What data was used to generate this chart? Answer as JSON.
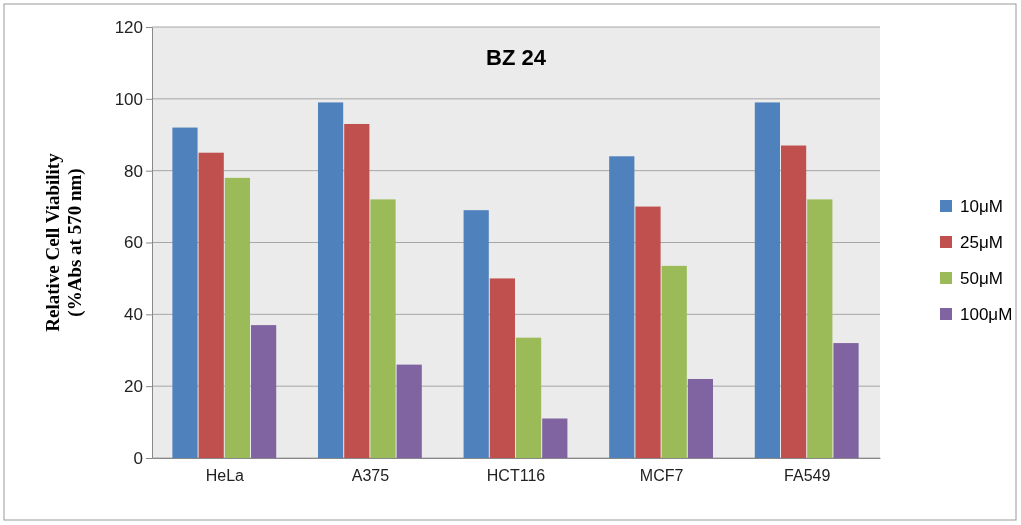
{
  "chart_data": {
    "type": "bar",
    "title": "BZ 24",
    "ylabel": "Relative Cell Viability\n(%Abs at 570 nm)",
    "categories": [
      "HeLa",
      "A375",
      "HCT116",
      "MCF7",
      "FA549"
    ],
    "series": [
      {
        "name": "10μM",
        "color": "#4f81bd",
        "values": [
          92,
          99,
          69,
          84,
          99
        ]
      },
      {
        "name": "25μM",
        "color": "#c0504d",
        "values": [
          85,
          93,
          50,
          70,
          87
        ]
      },
      {
        "name": "50μM",
        "color": "#9bbb59",
        "values": [
          78,
          72,
          33.5,
          53.5,
          72
        ]
      },
      {
        "name": "100μM",
        "color": "#8064a2",
        "values": [
          37,
          26,
          11,
          22,
          32
        ]
      }
    ],
    "ylim": [
      0,
      120
    ],
    "yticks": [
      0,
      20,
      40,
      60,
      80,
      100,
      120
    ],
    "grid": "y",
    "legend": "right"
  }
}
